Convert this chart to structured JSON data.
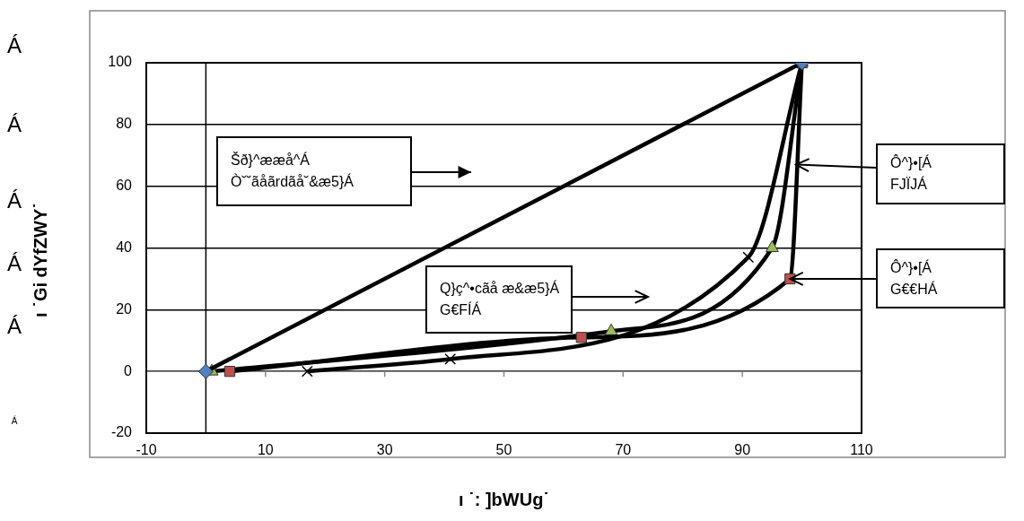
{
  "chart_data": {
    "type": "scatter",
    "xlabel": "ı ˙: ]bWUg˙",
    "ylabel": "ı ˙Gi dYfZWY˙",
    "xlim": [
      -10,
      110
    ],
    "xticks": [
      -10,
      10,
      30,
      50,
      70,
      90,
      110
    ],
    "ylim": [
      -20,
      100
    ],
    "yticks": [
      -20,
      0,
      20,
      40,
      60,
      80,
      100
    ],
    "grid": "y",
    "legend": false,
    "series": [
      {
        "type": "line",
        "color": "#4f81bd",
        "marker": "diamond",
        "x": [
          0,
          100
        ],
        "values": [
          0,
          100
        ]
      },
      {
        "type": "line",
        "color": "#c0504d",
        "marker": "square",
        "x": [
          4,
          63,
          98,
          100
        ],
        "values": [
          0,
          11,
          30,
          100
        ]
      },
      {
        "type": "line",
        "color": "#9bbb59",
        "marker": "triangle",
        "x": [
          1,
          68,
          95,
          100
        ],
        "values": [
          0,
          13,
          40,
          100
        ]
      },
      {
        "type": "line",
        "color": "#000000",
        "marker": "cross",
        "x": [
          17,
          41,
          91,
          100
        ],
        "values": [
          0,
          4,
          37,
          100
        ]
      }
    ],
    "annotations": [
      "Šð}^ææå^Á\nÒ˘˘ãåãrdãå˘&æ5}Á",
      "Q}ç^•cãå æ&æ5}Á\nG€FÍÁ",
      {
        "text": "Ô^}•[Á\nFJÏJÁ",
        "x": 99,
        "y": 67
      },
      {
        "text": "Ô^}•[Á\nG€€HÁ",
        "x": 98,
        "y": 30
      },
      "Á",
      "Á",
      "Á",
      "Á",
      "Á",
      "Á"
    ]
  }
}
